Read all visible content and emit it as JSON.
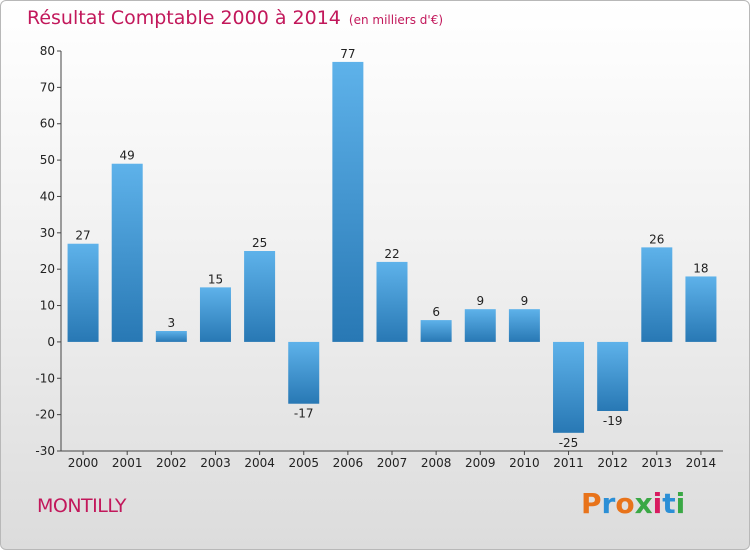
{
  "header": {
    "title": "Résultat Comptable 2000 à 2014",
    "unit": "(en milliers d'€)"
  },
  "footer": {
    "city": "MONTILLY",
    "logo_text": "Proxiti"
  },
  "colors": {
    "title": "#c2185b",
    "bar_light": "#5eb2ea",
    "bar_dark": "#2878b4",
    "logo": [
      "#e8731a",
      "#2b8fd6",
      "#e8731a",
      "#3aa845",
      "#d81b60",
      "#2b8fd6",
      "#3aa845"
    ]
  },
  "chart_data": {
    "type": "bar",
    "title": "Résultat Comptable 2000 à 2014",
    "subtitle": "(en milliers d'€)",
    "xlabel": "",
    "ylabel": "",
    "categories": [
      "2000",
      "2001",
      "2002",
      "2003",
      "2004",
      "2005",
      "2006",
      "2007",
      "2008",
      "2009",
      "2010",
      "2011",
      "2012",
      "2013",
      "2014"
    ],
    "values": [
      27,
      49,
      3,
      15,
      25,
      -17,
      77,
      22,
      6,
      9,
      9,
      -25,
      -19,
      26,
      18
    ],
    "data_labels": [
      "27",
      "49",
      "3",
      "15",
      "25",
      "-17",
      "77",
      "22",
      "6",
      "9",
      "9",
      "-25",
      "-19",
      "26",
      "18"
    ],
    "ylim": [
      -30,
      80
    ],
    "yticks": [
      80,
      70,
      60,
      50,
      40,
      30,
      20,
      10,
      0,
      -10,
      -20,
      -30
    ],
    "grid": false
  }
}
